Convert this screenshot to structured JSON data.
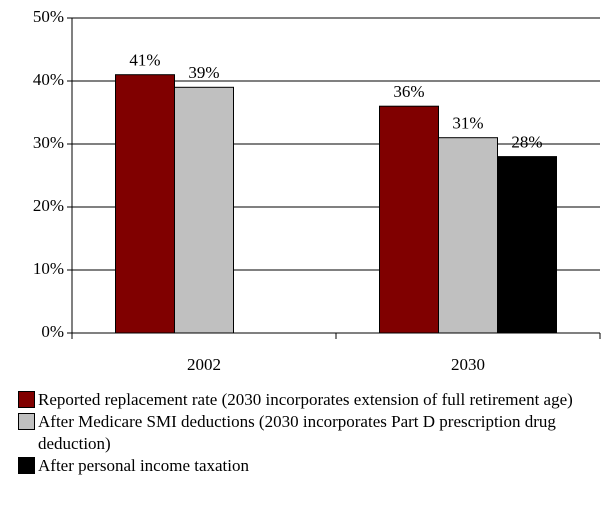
{
  "chart_data": {
    "type": "bar",
    "categories": [
      "2002",
      "2030"
    ],
    "series": [
      {
        "name": "Reported replacement rate (2030 incorporates extension of full retirement age)",
        "color": "#800000",
        "values": [
          41,
          36
        ],
        "value_labels": [
          "41%",
          "36%"
        ]
      },
      {
        "name": "After Medicare SMI deductions (2030 incorporates Part D prescription drug deduction)",
        "color": "#c0c0c0",
        "values": [
          39,
          31
        ],
        "value_labels": [
          "39%",
          "31%"
        ]
      },
      {
        "name": "After personal income taxation",
        "color": "#000000",
        "values": [
          null,
          28
        ],
        "value_labels": [
          null,
          "28%"
        ]
      }
    ],
    "ylim": [
      0,
      50
    ],
    "yticks": [
      {
        "value": 0,
        "label": "0%"
      },
      {
        "value": 10,
        "label": "10%"
      },
      {
        "value": 20,
        "label": "20%"
      },
      {
        "value": 30,
        "label": "30%"
      },
      {
        "value": 40,
        "label": "40%"
      },
      {
        "value": 50,
        "label": "50%"
      }
    ],
    "grid": true,
    "legend": "bottom"
  }
}
